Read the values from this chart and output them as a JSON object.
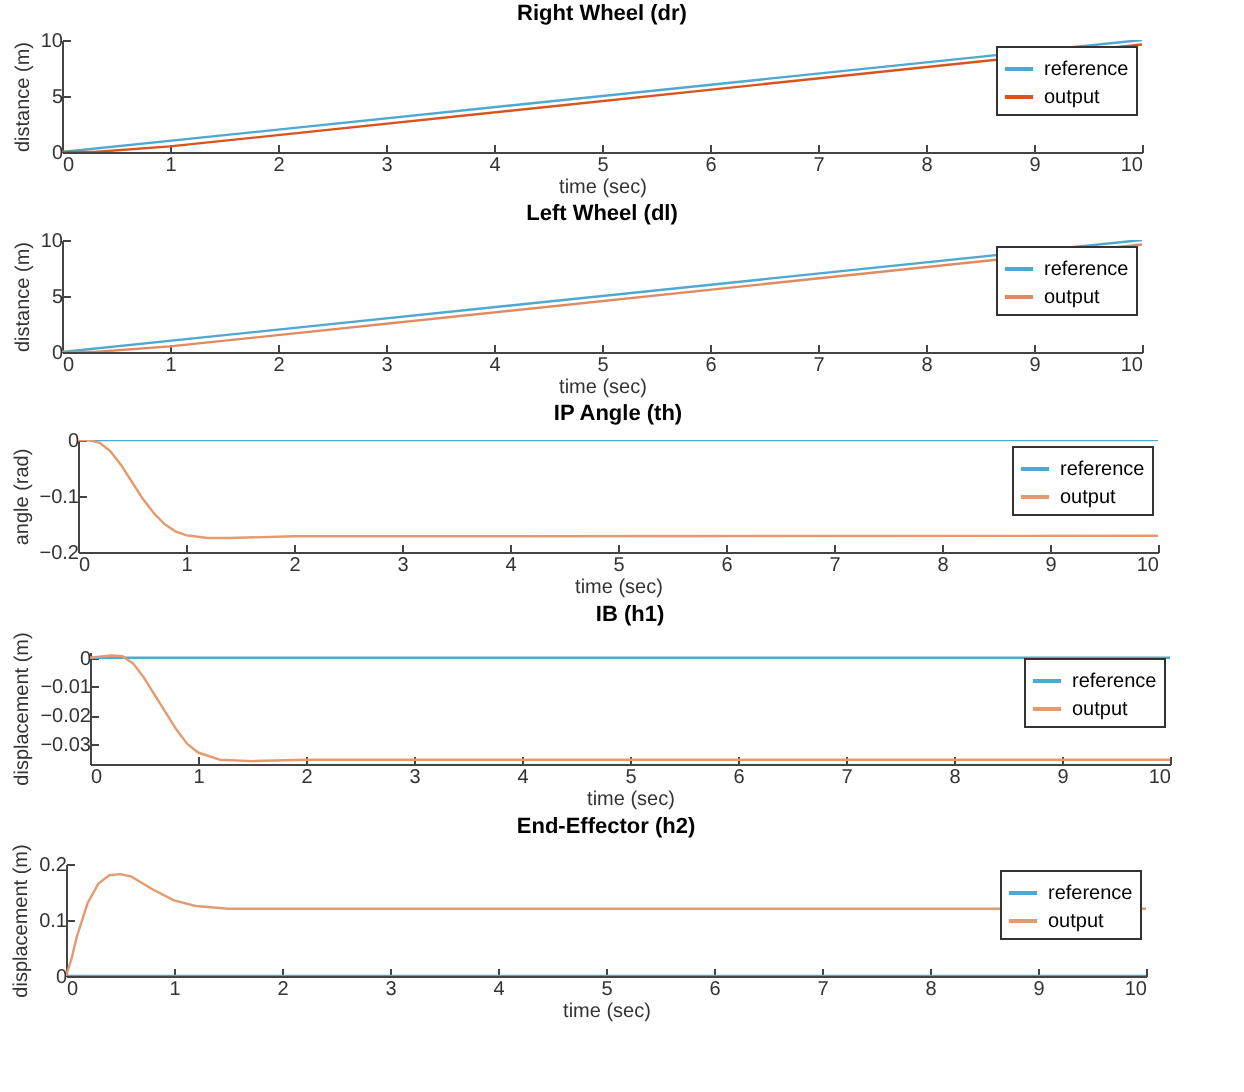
{
  "chart_data": [
    {
      "type": "line",
      "title": "Right Wheel (dr)",
      "xlabel": "time (sec)",
      "ylabel": "distance (m)",
      "xlim": [
        0,
        10
      ],
      "xticks": [
        0,
        1,
        2,
        3,
        4,
        5,
        6,
        7,
        8,
        9,
        10
      ],
      "ylim": [
        0,
        10
      ],
      "yticks": [
        0,
        5,
        10
      ],
      "legend": "top right",
      "series": [
        {
          "name": "reference",
          "color": "#4fa8cf",
          "x": [
            0,
            10
          ],
          "values": [
            0,
            10
          ]
        },
        {
          "name": "output",
          "color": "#d9531e",
          "x": [
            0,
            0.3,
            1,
            10
          ],
          "values": [
            0,
            0,
            0.5,
            9.6
          ]
        }
      ]
    },
    {
      "type": "line",
      "title": "Left Wheel (dl)",
      "xlabel": "time (sec)",
      "ylabel": "distance (m)",
      "xlim": [
        0,
        10
      ],
      "xticks": [
        0,
        1,
        2,
        3,
        4,
        5,
        6,
        7,
        8,
        9,
        10
      ],
      "ylim": [
        0,
        10
      ],
      "yticks": [
        0,
        5,
        10
      ],
      "legend": "top right",
      "series": [
        {
          "name": "reference",
          "color": "#4fa8cf",
          "x": [
            0,
            10
          ],
          "values": [
            0,
            10
          ]
        },
        {
          "name": "output",
          "color": "#e08a62",
          "x": [
            0,
            0.3,
            1,
            10
          ],
          "values": [
            0,
            0,
            0.5,
            9.6
          ]
        }
      ]
    },
    {
      "type": "line",
      "title": "IP Angle (th)",
      "xlabel": "time (sec)",
      "ylabel": "angle (rad)",
      "xlim": [
        0,
        10
      ],
      "xticks": [
        0,
        1,
        2,
        3,
        4,
        5,
        6,
        7,
        8,
        9,
        10
      ],
      "ylim": [
        -0.2,
        0
      ],
      "yticks": [
        -0.2,
        -0.1,
        0
      ],
      "legend": "top right",
      "series": [
        {
          "name": "reference",
          "color": "#4fa8cf",
          "x": [
            0,
            10
          ],
          "values": [
            0,
            0
          ]
        },
        {
          "name": "output",
          "color": "#e39a6e",
          "x": [
            0,
            0.1,
            0.2,
            0.3,
            0.4,
            0.5,
            0.6,
            0.7,
            0.8,
            0.9,
            1,
            1.2,
            1.4,
            2,
            10
          ],
          "values": [
            0,
            0,
            -0.005,
            -0.02,
            -0.045,
            -0.075,
            -0.105,
            -0.13,
            -0.15,
            -0.163,
            -0.17,
            -0.175,
            -0.175,
            -0.172,
            -0.171
          ]
        }
      ]
    },
    {
      "type": "line",
      "title": "IB (h1)",
      "xlabel": "time (sec)",
      "ylabel": "displacement (m)",
      "xlim": [
        0,
        10
      ],
      "xticks": [
        0,
        1,
        2,
        3,
        4,
        5,
        6,
        7,
        8,
        9,
        10
      ],
      "ylim": [
        -0.037,
        0.002
      ],
      "yticks": [
        -0.03,
        -0.02,
        -0.01,
        0
      ],
      "legend": "top right",
      "series": [
        {
          "name": "reference",
          "color": "#4fa8cf",
          "x": [
            0,
            10
          ],
          "values": [
            0,
            0
          ]
        },
        {
          "name": "output",
          "color": "#e39a6e",
          "x": [
            0,
            0.2,
            0.3,
            0.4,
            0.5,
            0.6,
            0.7,
            0.8,
            0.9,
            1,
            1.2,
            1.5,
            2,
            10
          ],
          "values": [
            0,
            0.0008,
            0.0005,
            -0.002,
            -0.007,
            -0.013,
            -0.019,
            -0.025,
            -0.03,
            -0.033,
            -0.0355,
            -0.036,
            -0.0355,
            -0.0355
          ]
        }
      ]
    },
    {
      "type": "line",
      "title": "End-Effector (h2)",
      "xlabel": "time (sec)",
      "ylabel": "displacement (m)",
      "xlim": [
        0,
        10
      ],
      "xticks": [
        0,
        1,
        2,
        3,
        4,
        5,
        6,
        7,
        8,
        9,
        10
      ],
      "ylim": [
        0,
        0.2
      ],
      "yticks": [
        0,
        0.1,
        0.2
      ],
      "legend": "top right",
      "series": [
        {
          "name": "reference",
          "color": "#4fa8cf",
          "x": [
            0,
            10
          ],
          "values": [
            0,
            0
          ]
        },
        {
          "name": "output",
          "color": "#e39a6e",
          "x": [
            0,
            0.05,
            0.1,
            0.2,
            0.3,
            0.4,
            0.5,
            0.6,
            0.8,
            1,
            1.2,
            1.5,
            2,
            10
          ],
          "values": [
            0,
            0.03,
            0.07,
            0.13,
            0.165,
            0.18,
            0.182,
            0.178,
            0.155,
            0.135,
            0.125,
            0.12,
            0.12,
            0.12
          ]
        }
      ]
    }
  ]
}
